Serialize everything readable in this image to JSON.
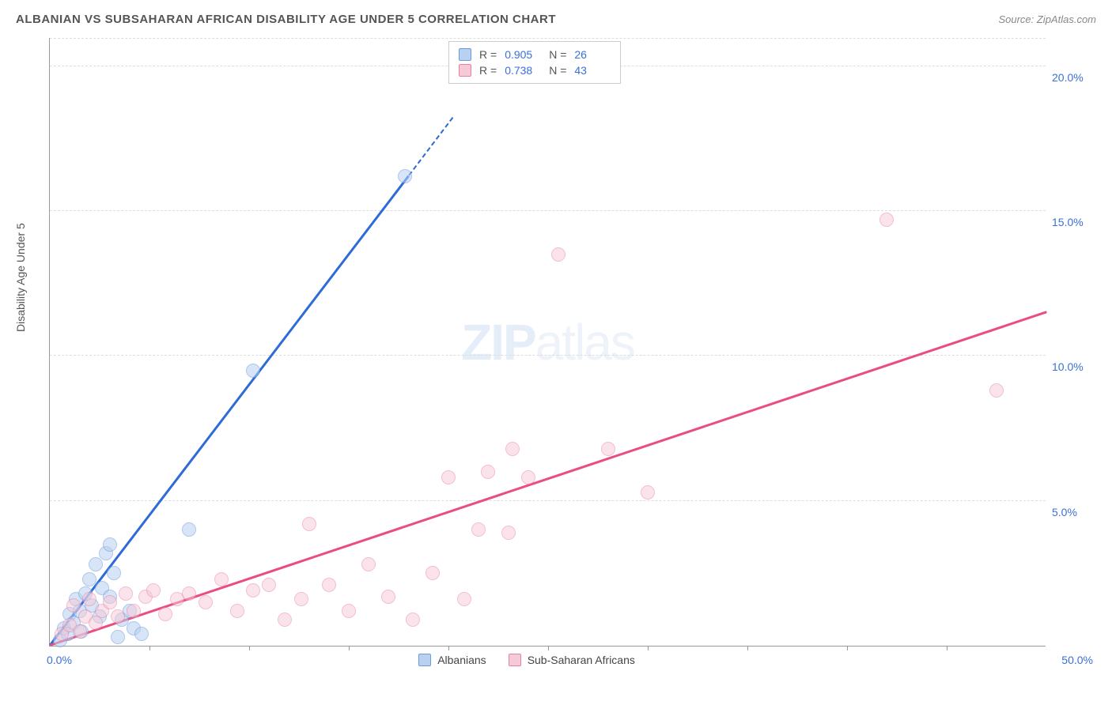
{
  "title": "ALBANIAN VS SUBSAHARAN AFRICAN DISABILITY AGE UNDER 5 CORRELATION CHART",
  "source_label": "Source: ZipAtlas.com",
  "y_axis_label": "Disability Age Under 5",
  "watermark": {
    "zip": "ZIP",
    "atlas": "atlas"
  },
  "chart": {
    "type": "scatter",
    "background_color": "#ffffff",
    "grid_color": "#dddddd",
    "axis_color": "#999999",
    "label_color": "#555555",
    "tick_label_color": "#3a6fd8",
    "xlim": [
      0,
      50
    ],
    "ylim": [
      0,
      21
    ],
    "ytick_values": [
      5,
      10,
      15,
      20
    ],
    "ytick_labels": [
      "5.0%",
      "10.0%",
      "15.0%",
      "20.0%"
    ],
    "xtick_values": [
      5,
      10,
      15,
      20,
      25,
      30,
      35,
      40,
      45
    ],
    "x_origin_label": "0.0%",
    "x_max_label": "50.0%",
    "marker_radius": 9,
    "marker_stroke_width": 1.5,
    "series": [
      {
        "name": "Albanians",
        "fill": "#b9d1f0",
        "stroke": "#6a9be0",
        "fill_alpha": 0.55,
        "trend_color": "#2e6bd6",
        "trend_from": [
          0,
          0
        ],
        "trend_to": [
          18,
          16.2
        ],
        "trend_dash_to": [
          20.2,
          18.2
        ],
        "R": "0.905",
        "N": "26",
        "points": [
          [
            0.5,
            0.2
          ],
          [
            0.7,
            0.6
          ],
          [
            0.9,
            0.4
          ],
          [
            1.0,
            1.1
          ],
          [
            1.2,
            0.8
          ],
          [
            1.3,
            1.6
          ],
          [
            1.5,
            1.2
          ],
          [
            1.6,
            0.5
          ],
          [
            1.8,
            1.8
          ],
          [
            2.0,
            2.3
          ],
          [
            2.1,
            1.4
          ],
          [
            2.3,
            2.8
          ],
          [
            2.5,
            1.0
          ],
          [
            2.6,
            2.0
          ],
          [
            2.8,
            3.2
          ],
          [
            3.0,
            1.7
          ],
          [
            3.2,
            2.5
          ],
          [
            3.4,
            0.3
          ],
          [
            3.6,
            0.9
          ],
          [
            4.0,
            1.2
          ],
          [
            4.2,
            0.6
          ],
          [
            4.6,
            0.4
          ],
          [
            3.0,
            3.5
          ],
          [
            7.0,
            4.0
          ],
          [
            10.2,
            9.5
          ],
          [
            17.8,
            16.2
          ]
        ]
      },
      {
        "name": "Sub-Saharan Africans",
        "fill": "#f6c9d6",
        "stroke": "#e97fa5",
        "fill_alpha": 0.5,
        "trend_color": "#e94d82",
        "trend_from": [
          0,
          0
        ],
        "trend_to": [
          50,
          11.5
        ],
        "R": "0.738",
        "N": "43",
        "points": [
          [
            0.6,
            0.4
          ],
          [
            1.0,
            0.7
          ],
          [
            1.2,
            1.4
          ],
          [
            1.5,
            0.5
          ],
          [
            1.8,
            1.0
          ],
          [
            2.0,
            1.6
          ],
          [
            2.3,
            0.8
          ],
          [
            2.6,
            1.2
          ],
          [
            3.0,
            1.5
          ],
          [
            3.4,
            1.0
          ],
          [
            3.8,
            1.8
          ],
          [
            4.2,
            1.2
          ],
          [
            4.8,
            1.7
          ],
          [
            5.2,
            1.9
          ],
          [
            5.8,
            1.1
          ],
          [
            6.4,
            1.6
          ],
          [
            7.0,
            1.8
          ],
          [
            7.8,
            1.5
          ],
          [
            8.6,
            2.3
          ],
          [
            9.4,
            1.2
          ],
          [
            10.2,
            1.9
          ],
          [
            11.0,
            2.1
          ],
          [
            11.8,
            0.9
          ],
          [
            12.6,
            1.6
          ],
          [
            13.0,
            4.2
          ],
          [
            14.0,
            2.1
          ],
          [
            15.0,
            1.2
          ],
          [
            16.0,
            2.8
          ],
          [
            17.0,
            1.7
          ],
          [
            18.2,
            0.9
          ],
          [
            19.2,
            2.5
          ],
          [
            20.0,
            5.8
          ],
          [
            20.8,
            1.6
          ],
          [
            21.5,
            4.0
          ],
          [
            22.0,
            6.0
          ],
          [
            23.2,
            6.8
          ],
          [
            24.0,
            5.8
          ],
          [
            23.0,
            3.9
          ],
          [
            25.5,
            13.5
          ],
          [
            28.0,
            6.8
          ],
          [
            30.0,
            5.3
          ],
          [
            42.0,
            14.7
          ],
          [
            47.5,
            8.8
          ]
        ]
      }
    ]
  },
  "legend": {
    "items": [
      {
        "label": "Albanians",
        "fill": "#b9d1f0",
        "stroke": "#6a9be0"
      },
      {
        "label": "Sub-Saharan Africans",
        "fill": "#f6c9d6",
        "stroke": "#e97fa5"
      }
    ]
  },
  "stats_box": {
    "rows": [
      {
        "swatch_fill": "#b9d1f0",
        "swatch_stroke": "#6a9be0",
        "r_label": "R =",
        "r_val": "0.905",
        "n_label": "N =",
        "n_val": "26"
      },
      {
        "swatch_fill": "#f6c9d6",
        "swatch_stroke": "#e97fa5",
        "r_label": "R =",
        "r_val": "0.738",
        "n_label": "N =",
        "n_val": "43"
      }
    ]
  }
}
